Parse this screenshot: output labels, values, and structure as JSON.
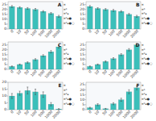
{
  "chart_data": [
    {
      "type": "bar",
      "title": "A",
      "categories": [
        "0",
        "10",
        "50",
        "100",
        "500",
        "1000",
        "2000"
      ],
      "values": [
        23,
        22,
        21,
        20,
        18,
        16,
        13
      ],
      "errors": [
        1.0,
        0.8,
        0.9,
        1.0,
        0.8,
        0.9,
        1.0
      ],
      "color": "#3bbfba",
      "ylim": [
        0,
        28
      ],
      "yticks": [
        0,
        5,
        10,
        15,
        20,
        25
      ],
      "annotations": [
        "¤",
        "¤*",
        "¤*ﻌ",
        "¤*ﻌ●",
        "¤*ﻌ●○"
      ]
    },
    {
      "type": "bar",
      "title": "B",
      "categories": [
        "0",
        "10",
        "50",
        "100",
        "500",
        "1000",
        "2000"
      ],
      "values": [
        23,
        21,
        20,
        19,
        18,
        15,
        13
      ],
      "errors": [
        1.0,
        0.8,
        0.9,
        1.0,
        0.8,
        0.9,
        1.0
      ],
      "color": "#3bbfba",
      "ylim": [
        0,
        28
      ],
      "yticks": [
        0,
        5,
        10,
        15,
        20,
        25
      ],
      "annotations": [
        "¤",
        "¤*",
        "¤*ﻌ",
        "¤*ﻌ●",
        "¤*ﻌ●○"
      ]
    },
    {
      "type": "bar",
      "title": "C",
      "categories": [
        "0",
        "10",
        "50",
        "100",
        "500",
        "1000",
        "2000"
      ],
      "values": [
        3,
        5,
        7,
        10,
        14,
        18,
        23
      ],
      "errors": [
        0.5,
        0.5,
        0.7,
        0.9,
        1.0,
        1.2,
        1.3
      ],
      "color": "#3bbfba",
      "ylim": [
        0,
        28
      ],
      "yticks": [
        0,
        5,
        10,
        15,
        20,
        25
      ],
      "annotations": [
        "¤",
        "¤*",
        "¤*ﻌ",
        "¤*ﻌ●",
        "¤*ﻌ●○"
      ]
    },
    {
      "type": "bar",
      "title": "D",
      "categories": [
        "0",
        "10",
        "50",
        "100",
        "500",
        "1000",
        "2000"
      ],
      "values": [
        3,
        5,
        8,
        11,
        15,
        20,
        25
      ],
      "errors": [
        0.5,
        0.5,
        0.7,
        0.9,
        1.0,
        1.2,
        1.3
      ],
      "color": "#3bbfba",
      "ylim": [
        0,
        28
      ],
      "yticks": [
        0,
        5,
        10,
        15,
        20,
        25
      ],
      "annotations": [
        "¤",
        "¤*",
        "¤*ﻌ",
        "¤*ﻌ●",
        "¤*ﻌ●○"
      ]
    },
    {
      "type": "bar",
      "title": "E",
      "categories": [
        "0",
        "10",
        "50",
        "100",
        "500",
        "1000",
        "2000"
      ],
      "values": [
        10,
        12,
        14,
        13,
        11,
        4,
        0.5
      ],
      "errors": [
        1.8,
        1.5,
        2.5,
        2.0,
        2.0,
        1.2,
        0.3
      ],
      "color": "#3bbfba",
      "ylim": [
        0,
        20
      ],
      "yticks": [
        0,
        5,
        10,
        15,
        20
      ],
      "annotations": [
        "¤",
        "¤*",
        "¤*ﻌ",
        "¤*ﻌ●",
        "¤*ﻌ●○"
      ]
    },
    {
      "type": "bar",
      "title": "F",
      "categories": [
        "0",
        "10",
        "50",
        "100",
        "500",
        "1000",
        "2000"
      ],
      "values": [
        2,
        5,
        1,
        6,
        10,
        18,
        22
      ],
      "errors": [
        0.5,
        1.0,
        0.3,
        1.0,
        1.5,
        2.0,
        2.0
      ],
      "color": "#3bbfba",
      "ylim": [
        0,
        27.5
      ],
      "yticks": [
        0,
        5,
        10,
        15,
        20,
        25
      ],
      "annotations": [
        "¤",
        "¤*",
        "¤*ﻌ",
        "¤*ﻌ●",
        "¤*ﻌ●○"
      ]
    }
  ]
}
